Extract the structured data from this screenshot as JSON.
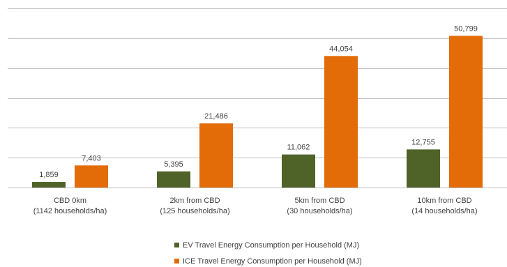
{
  "chart_data": {
    "type": "bar",
    "categories": [
      [
        "CBD 0km",
        "(1142 households/ha)"
      ],
      [
        "2km from CBD",
        "(125 households/ha)"
      ],
      [
        "5km from CBD",
        "(30 households/ha)"
      ],
      [
        "10km from CBD",
        "(14 households/ha)"
      ]
    ],
    "series": [
      {
        "name": "EV Travel Energy Consumption per Household (MJ)",
        "color": "#4f6228",
        "values": [
          1859,
          5395,
          11062,
          12755
        ],
        "labels": [
          "1,859",
          "5,395",
          "11,062",
          "12,755"
        ]
      },
      {
        "name": "ICE Travel Energy Consumption per Household (MJ)",
        "color": "#e36c09",
        "values": [
          7403,
          21486,
          44054,
          50799
        ],
        "labels": [
          "7,403",
          "21,486",
          "44,054",
          "50,799"
        ]
      }
    ],
    "ylim": [
      0,
      60000
    ],
    "ytick_step": 10000,
    "grid": true,
    "legend_position": "bottom"
  }
}
